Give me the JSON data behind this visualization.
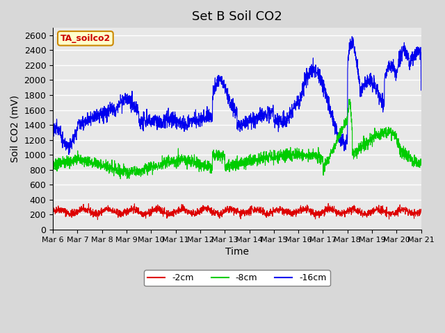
{
  "title": "Set B Soil CO2",
  "xlabel": "Time",
  "ylabel": "Soil CO2 (mV)",
  "ylim": [
    0,
    2700
  ],
  "yticks": [
    0,
    200,
    400,
    600,
    800,
    1000,
    1200,
    1400,
    1600,
    1800,
    2000,
    2200,
    2400,
    2600
  ],
  "x_labels": [
    "Mar 6",
    "Mar 7",
    "Mar 8",
    "Mar 9",
    "Mar 10",
    "Mar 11",
    "Mar 12",
    "Mar 13",
    "Mar 14",
    "Mar 15",
    "Mar 16",
    "Mar 17",
    "Mar 18",
    "Mar 19",
    "Mar 20",
    "Mar 21"
  ],
  "line_colors": {
    "2cm": "#dd0000",
    "8cm": "#00cc00",
    "16cm": "#0000ee"
  },
  "legend_labels": [
    "-2cm",
    "-8cm",
    "-16cm"
  ],
  "annotation_text": "TA_soilco2",
  "annotation_bg": "#ffffcc",
  "annotation_border": "#cc8800",
  "background_color": "#e8e8e8",
  "plot_bg": "#f0f0f0",
  "grid_color": "#ffffff",
  "title_fontsize": 13,
  "axis_fontsize": 10,
  "tick_fontsize": 9
}
